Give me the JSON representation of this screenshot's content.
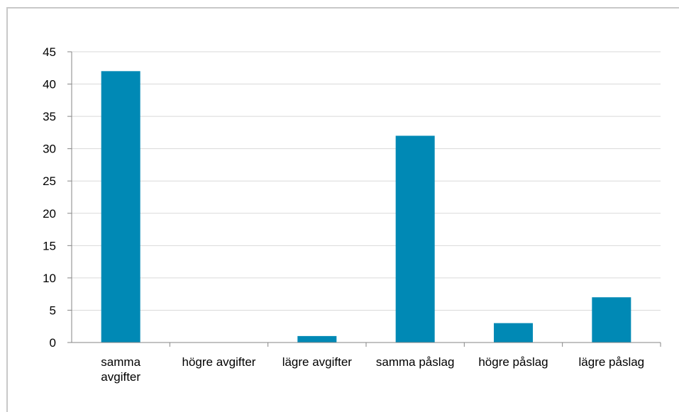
{
  "chart_data": {
    "type": "bar",
    "categories": [
      "samma avgifter",
      "högre avgifter",
      "lägre avgifter",
      "samma påslag",
      "högre påslag",
      "lägre påslag"
    ],
    "values": [
      42,
      0,
      1,
      32,
      3,
      7
    ],
    "ylim": [
      0,
      45
    ],
    "ytick_step": 5,
    "grid": true,
    "legend": "none",
    "title": "",
    "xlabel": "",
    "ylabel": "",
    "colors": {
      "bar": "#0089B5",
      "grid": "#d9d9d9",
      "axis": "#868686",
      "frame": "#c8c8c8"
    }
  }
}
